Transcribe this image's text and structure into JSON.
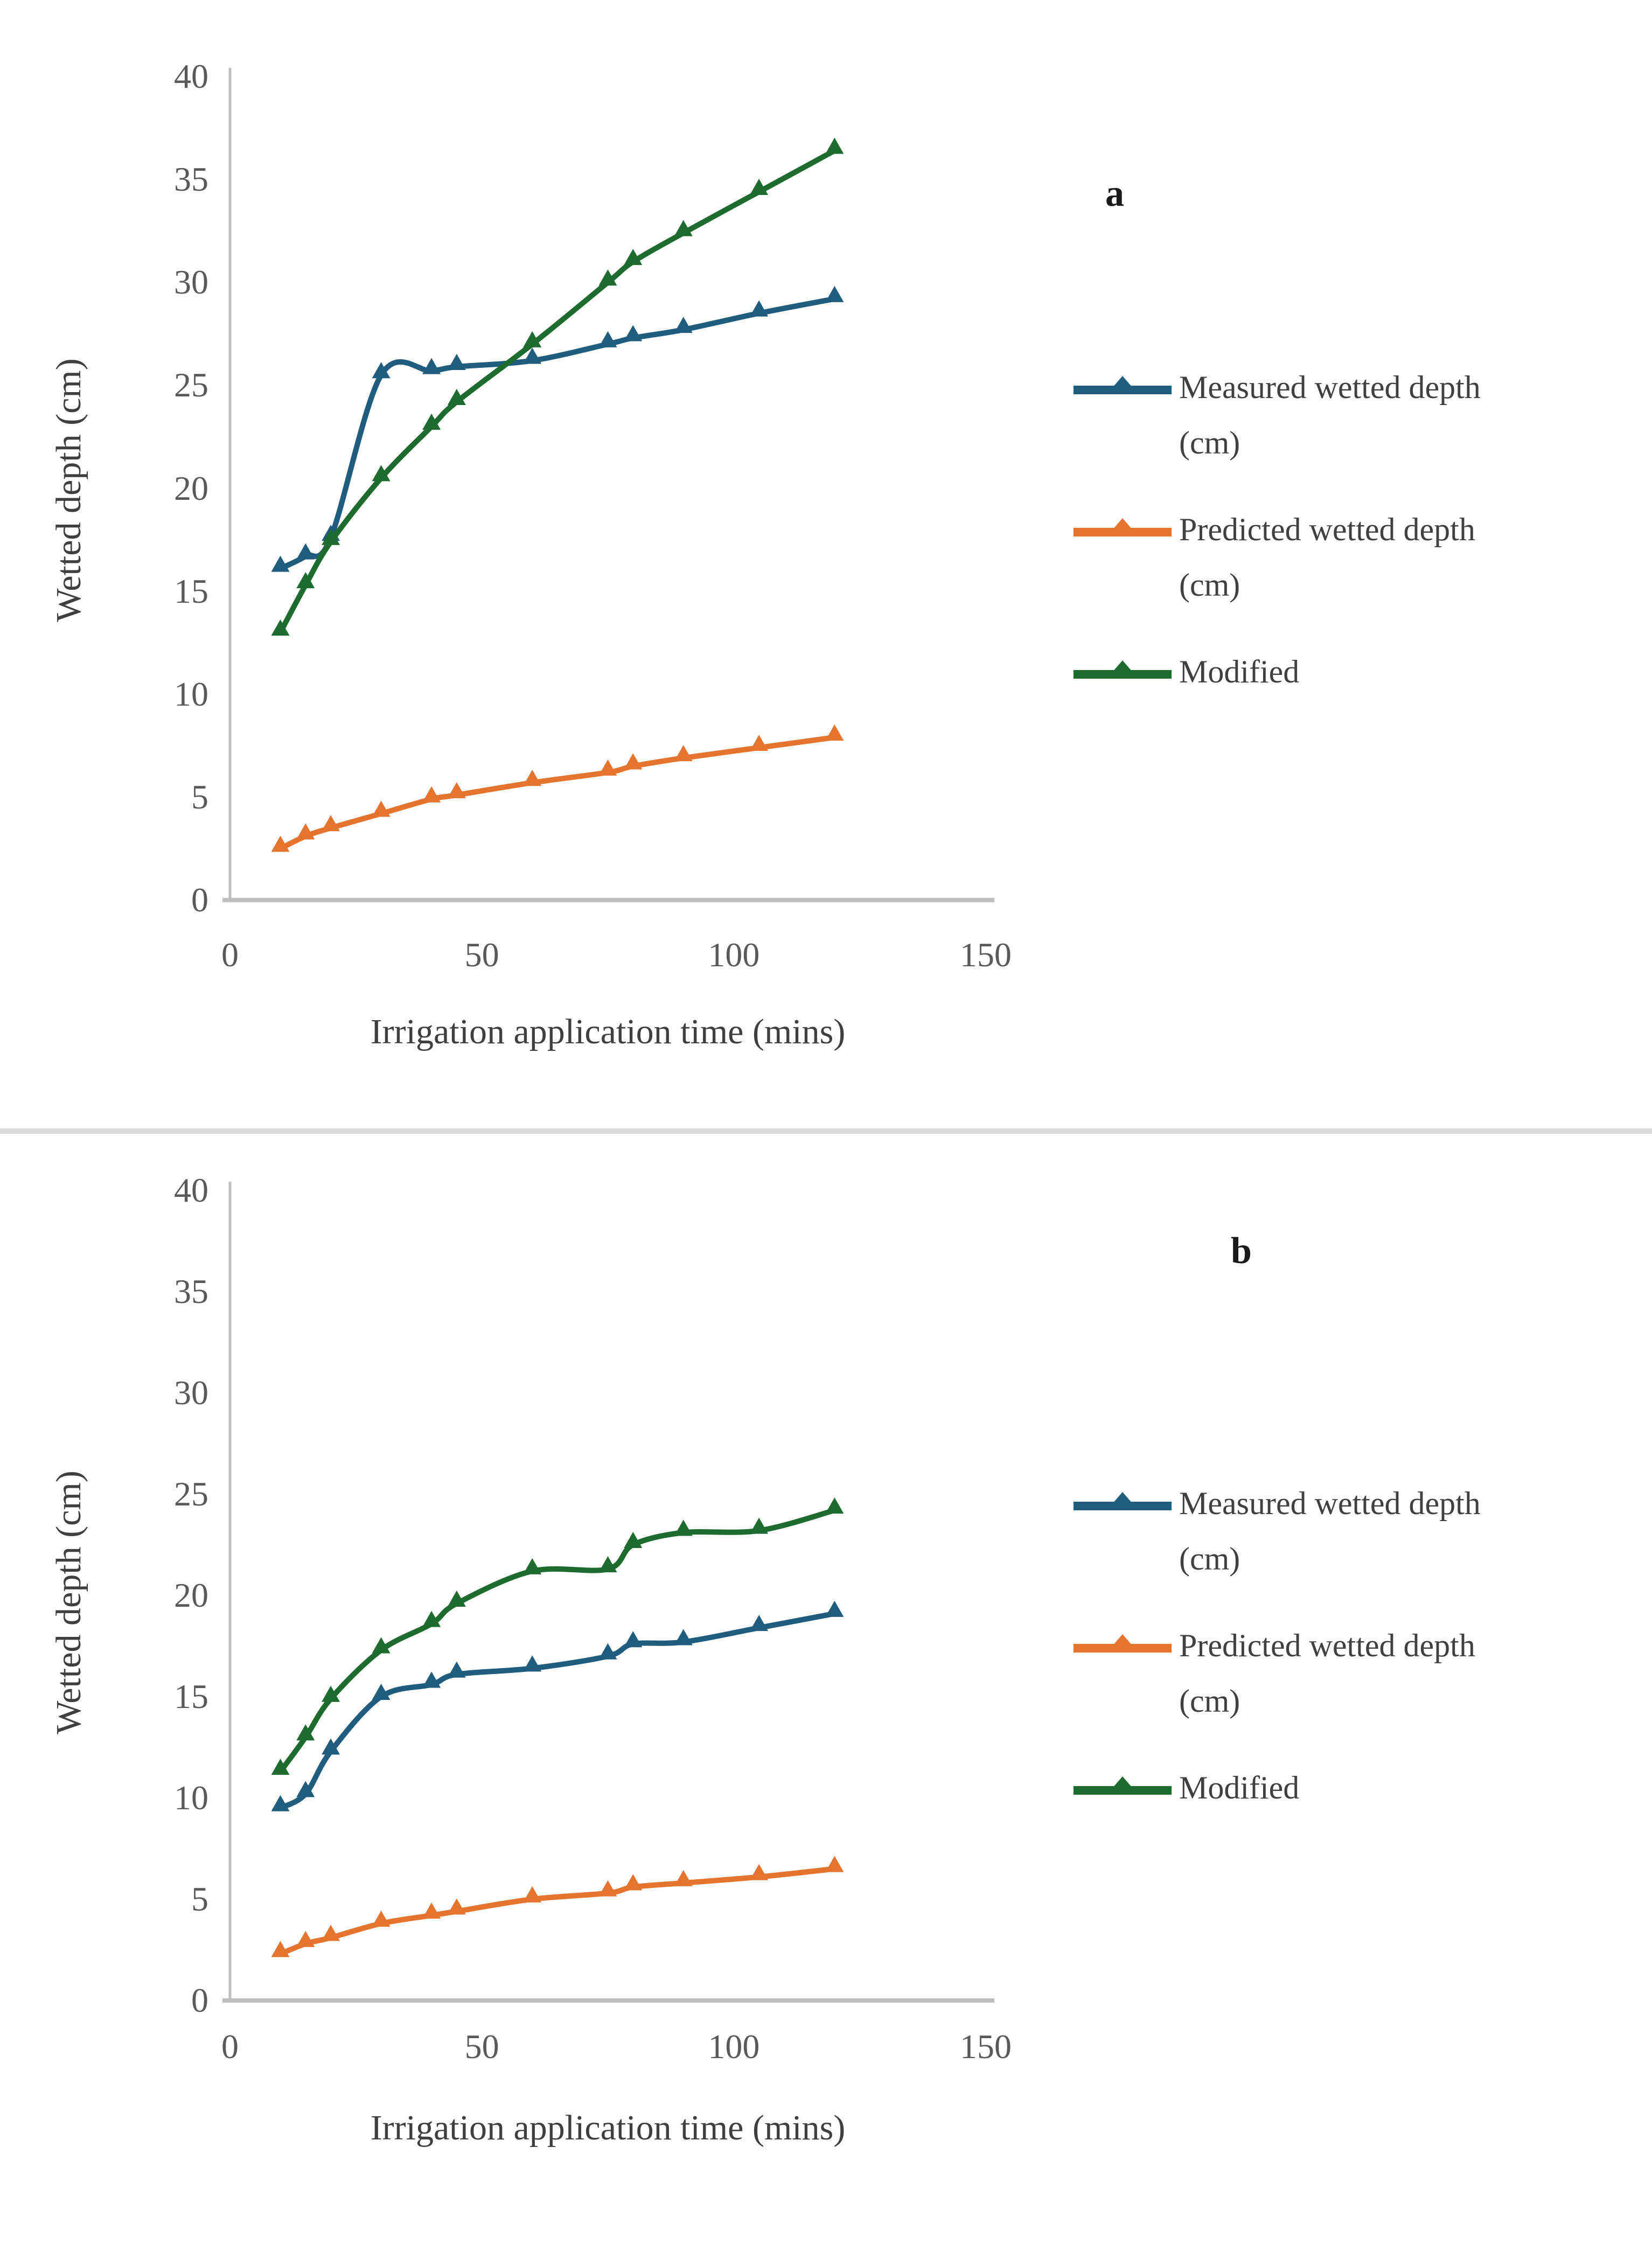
{
  "figure": {
    "background_color": "#ffffff",
    "border_color": "#c9c9c9",
    "axis_color": "#bfbfbf",
    "tick_text_color": "#595959"
  },
  "chart_data": [
    {
      "type": "line",
      "panel_label": "a",
      "title": "",
      "xlabel": "Irrigation application time (mins)",
      "ylabel": "Wetted depth (cm)",
      "xlim": [
        0,
        150
      ],
      "ylim": [
        0,
        40
      ],
      "xticks": [
        0,
        50,
        100,
        150
      ],
      "yticks": [
        0,
        5,
        10,
        15,
        20,
        25,
        30,
        35,
        40
      ],
      "grid": false,
      "legend_position": "right",
      "marker": "triangle-up",
      "x": [
        10,
        15,
        20,
        30,
        40,
        45,
        60,
        75,
        80,
        90,
        105,
        120
      ],
      "series": [
        {
          "name": "Measured wetted depth (cm)",
          "color": "#1F5C7D",
          "values": [
            16.1,
            16.7,
            17.6,
            25.5,
            25.7,
            25.9,
            26.2,
            27.0,
            27.3,
            27.7,
            28.5,
            29.2
          ]
        },
        {
          "name": "Predicted wetted depth (cm)",
          "color": "#E4742E",
          "values": [
            2.5,
            3.1,
            3.5,
            4.2,
            4.9,
            5.1,
            5.7,
            6.2,
            6.5,
            6.9,
            7.4,
            7.9
          ]
        },
        {
          "name": "Modified",
          "color": "#1E6B2F",
          "values": [
            13.0,
            15.3,
            17.4,
            20.5,
            23.0,
            24.2,
            27.0,
            30.0,
            31.0,
            32.4,
            34.4,
            36.4
          ]
        }
      ]
    },
    {
      "type": "line",
      "panel_label": "b",
      "title": "",
      "xlabel": "Irrigation application time (mins)",
      "ylabel": "Wetted depth (cm)",
      "xlim": [
        0,
        150
      ],
      "ylim": [
        0,
        40
      ],
      "xticks": [
        0,
        50,
        100,
        150
      ],
      "yticks": [
        0,
        5,
        10,
        15,
        20,
        25,
        30,
        35,
        40
      ],
      "grid": false,
      "legend_position": "right",
      "marker": "triangle-up",
      "x": [
        10,
        15,
        20,
        30,
        40,
        45,
        60,
        75,
        80,
        90,
        105,
        120
      ],
      "series": [
        {
          "name": "Measured wetted depth (cm)",
          "color": "#1F5C7D",
          "values": [
            9.5,
            10.2,
            12.3,
            15.0,
            15.6,
            16.1,
            16.4,
            17.0,
            17.6,
            17.7,
            18.4,
            19.1
          ]
        },
        {
          "name": "Predicted wetted depth (cm)",
          "color": "#E4742E",
          "values": [
            2.3,
            2.8,
            3.1,
            3.8,
            4.2,
            4.4,
            5.0,
            5.3,
            5.6,
            5.8,
            6.1,
            6.5
          ]
        },
        {
          "name": "Modified",
          "color": "#1E6B2F",
          "values": [
            11.3,
            13.0,
            14.9,
            17.3,
            18.6,
            19.6,
            21.2,
            21.3,
            22.5,
            23.1,
            23.2,
            24.2
          ]
        }
      ]
    }
  ]
}
